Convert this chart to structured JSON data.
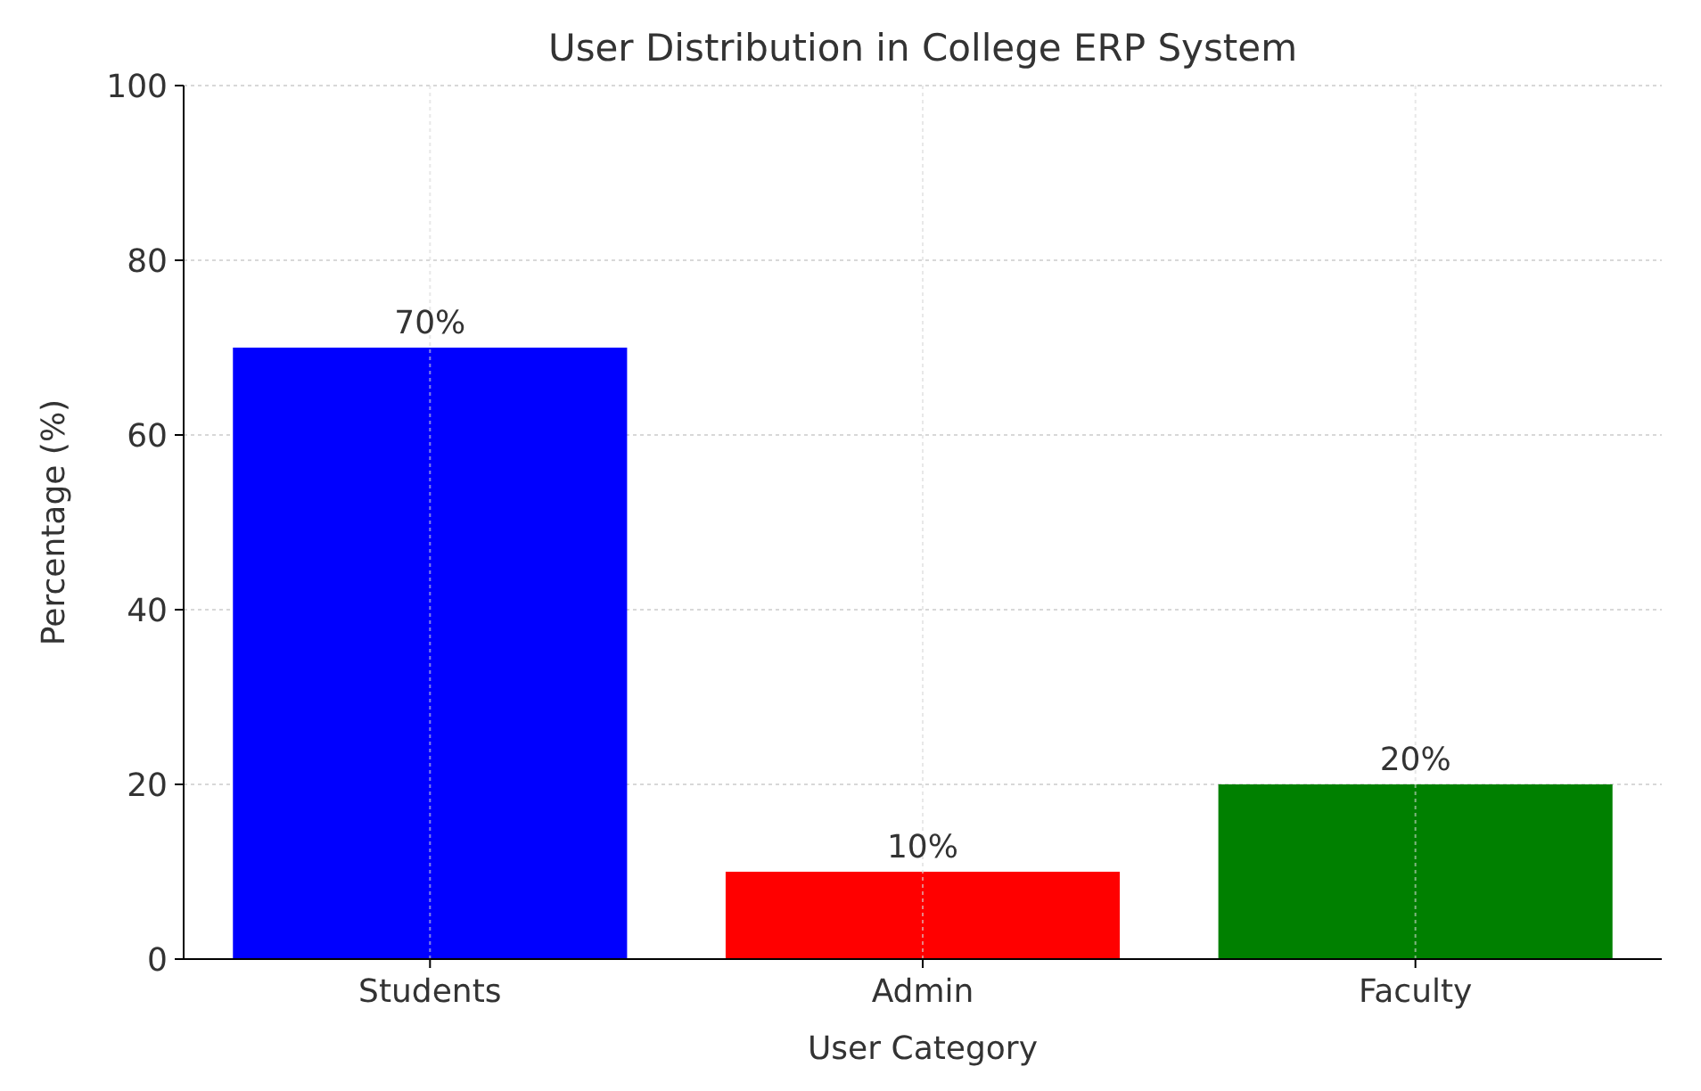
{
  "chart_data": {
    "type": "bar",
    "title": "User Distribution in College ERP System",
    "xlabel": "User Category",
    "ylabel": "Percentage (%)",
    "categories": [
      "Students",
      "Admin",
      "Faculty"
    ],
    "values": [
      70,
      10,
      20
    ],
    "colors": [
      "#0000ff",
      "#ff0000",
      "#008000"
    ],
    "value_labels": [
      "70%",
      "10%",
      "20%"
    ],
    "ylim": [
      0,
      100
    ],
    "yticks": [
      0,
      20,
      40,
      60,
      80,
      100
    ],
    "grid": true
  }
}
